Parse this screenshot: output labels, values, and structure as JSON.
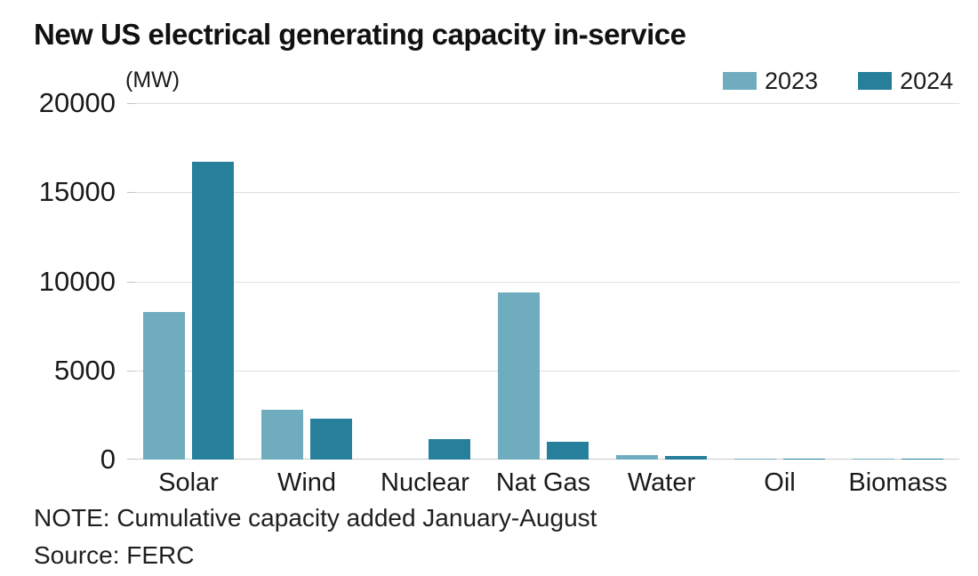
{
  "header": {
    "title": "New US electrical generating capacity in-service",
    "unit_label": "(MW)"
  },
  "legend": {
    "items": [
      {
        "label": "2023",
        "color": "#6fadbe"
      },
      {
        "label": "2024",
        "color": "#26809c"
      }
    ]
  },
  "chart_data": {
    "type": "bar",
    "title": "New US electrical generating capacity in-service",
    "unit": "MW",
    "categories": [
      "Solar",
      "Wind",
      "Nuclear",
      "Nat Gas",
      "Water",
      "Oil",
      "Biomass"
    ],
    "series": [
      {
        "name": "2023",
        "color": "#6fadbe",
        "values": [
          8300,
          2800,
          0,
          9400,
          250,
          50,
          60
        ]
      },
      {
        "name": "2024",
        "color": "#26809c",
        "values": [
          16700,
          2300,
          1150,
          1000,
          220,
          20,
          20
        ]
      }
    ],
    "ylim": [
      0,
      20000
    ],
    "yticks": [
      0,
      5000,
      10000,
      15000,
      20000
    ],
    "grid": true,
    "legend_position": "top-right"
  },
  "footer": {
    "note": "NOTE: Cumulative capacity added January-August",
    "source": "Source: FERC"
  }
}
